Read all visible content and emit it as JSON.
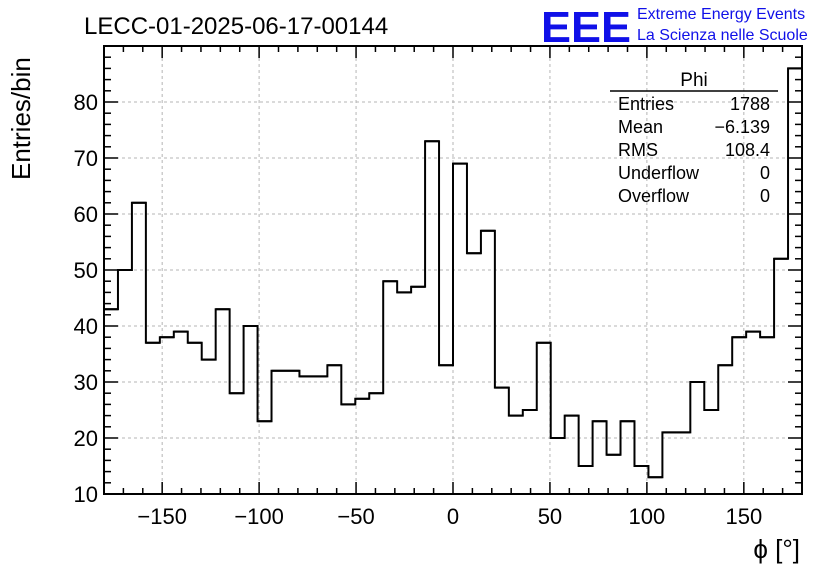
{
  "header": {
    "run_title": "LECC-01-2025-06-17-00144",
    "logo_text": "EEE",
    "logo_line1": "Extreme Energy Events",
    "logo_line2": "La Scienza nelle Scuole",
    "logo_color": "#1010e8"
  },
  "stats_box": {
    "title": "Phi",
    "rows": [
      {
        "label": "Entries",
        "value": "1788"
      },
      {
        "label": "Mean",
        "value": "−6.139"
      },
      {
        "label": "RMS",
        "value": "108.4"
      },
      {
        "label": "Underflow",
        "value": "0"
      },
      {
        "label": "Overflow",
        "value": "0"
      }
    ]
  },
  "chart_data": {
    "type": "bar",
    "style": "step-histogram",
    "xlabel": "ϕ [°]",
    "ylabel": "Entries/bin",
    "xlim": [
      -180,
      180
    ],
    "ylim": [
      10,
      90
    ],
    "bin_width": 7.2,
    "grid": true,
    "x_ticks": [
      -150,
      -100,
      -50,
      0,
      50,
      100,
      150
    ],
    "x_tick_labels": [
      "−150",
      "−100",
      "−50",
      "0",
      "50",
      "100",
      "150"
    ],
    "y_ticks": [
      10,
      20,
      30,
      40,
      50,
      60,
      70,
      80
    ],
    "y_tick_labels": [
      "10",
      "20",
      "30",
      "40",
      "50",
      "60",
      "70",
      "80"
    ],
    "values": [
      43,
      50,
      62,
      37,
      38,
      39,
      37,
      34,
      43,
      28,
      40,
      23,
      32,
      32,
      31,
      31,
      33,
      26,
      27,
      28,
      48,
      46,
      47,
      73,
      33,
      69,
      53,
      57,
      29,
      24,
      25,
      37,
      20,
      24,
      15,
      23,
      17,
      23,
      15,
      13,
      21,
      21,
      30,
      25,
      33,
      38,
      39,
      38,
      52,
      86
    ],
    "line_color": "#000000"
  }
}
